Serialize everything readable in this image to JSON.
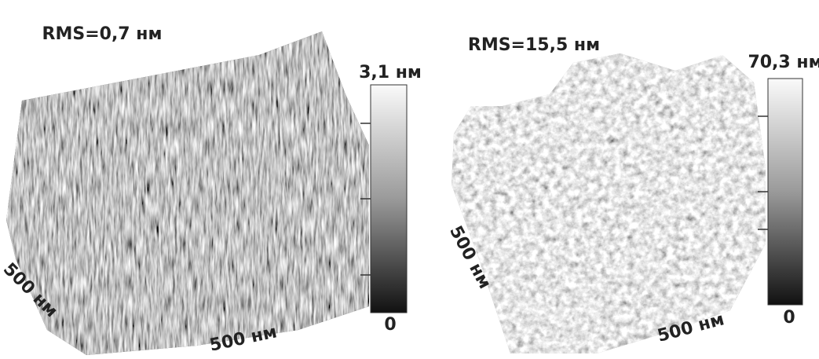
{
  "panels": [
    {
      "rms": "RMS=0,7 нм",
      "scale_max": "3,1 нм",
      "scale_min": "0",
      "x_label": "500 нм",
      "y_label": "500 нм"
    },
    {
      "rms": "RMS=15,5 нм",
      "scale_max": "70,3 нм",
      "scale_min": "0",
      "x_label": "500 нм",
      "y_label": "500 нм"
    }
  ]
}
